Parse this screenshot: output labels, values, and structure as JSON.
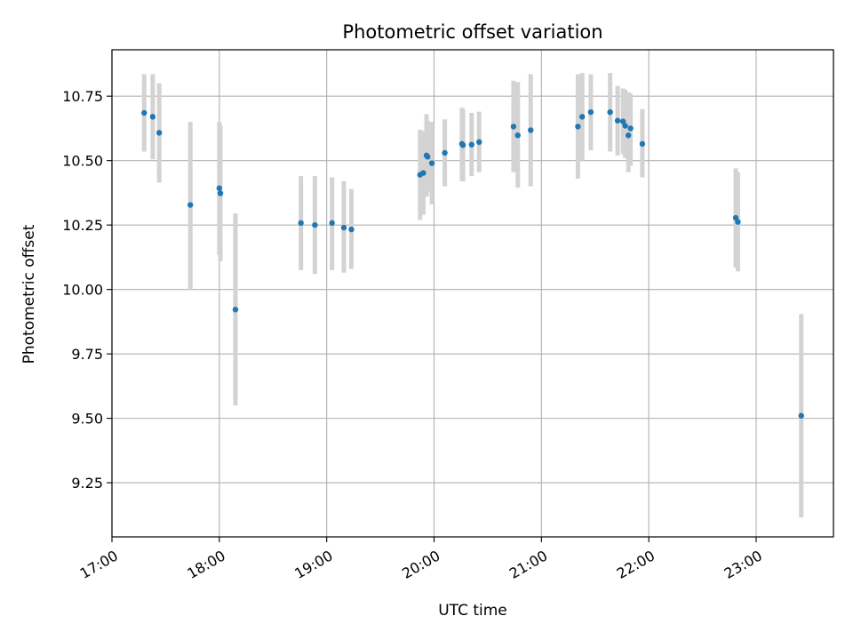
{
  "chart_data": {
    "type": "scatter",
    "title": "Photometric offset variation",
    "xlabel": "UTC time",
    "ylabel": "Photometric offset",
    "xlim_hours": [
      17.0,
      23.72
    ],
    "ylim": [
      9.04,
      10.93
    ],
    "grid": true,
    "x_ticks": [
      {
        "hour": 17,
        "label": "17:00"
      },
      {
        "hour": 18,
        "label": "18:00"
      },
      {
        "hour": 19,
        "label": "19:00"
      },
      {
        "hour": 20,
        "label": "20:00"
      },
      {
        "hour": 21,
        "label": "21:00"
      },
      {
        "hour": 22,
        "label": "22:00"
      },
      {
        "hour": 23,
        "label": "23:00"
      }
    ],
    "y_ticks": [
      {
        "value": 9.25,
        "label": "9.25"
      },
      {
        "value": 9.5,
        "label": "9.50"
      },
      {
        "value": 9.75,
        "label": "9.75"
      },
      {
        "value": 10.0,
        "label": "10.00"
      },
      {
        "value": 10.25,
        "label": "10.25"
      },
      {
        "value": 10.5,
        "label": "10.50"
      },
      {
        "value": 10.75,
        "label": "10.75"
      }
    ],
    "colors": {
      "point": "#1f77b4",
      "errorbar": "#d3d3d3",
      "grid": "#b0b0b0",
      "axes": "#000000"
    },
    "series": [
      {
        "name": "offset",
        "points": [
          {
            "t": 17.3,
            "y": 10.685,
            "lo": 10.535,
            "hi": 10.835
          },
          {
            "t": 17.38,
            "y": 10.67,
            "lo": 10.505,
            "hi": 10.835
          },
          {
            "t": 17.44,
            "y": 10.608,
            "lo": 10.415,
            "hi": 10.8
          },
          {
            "t": 17.73,
            "y": 10.328,
            "lo": 10.0,
            "hi": 10.65
          },
          {
            "t": 18.0,
            "y": 10.393,
            "lo": 10.135,
            "hi": 10.65
          },
          {
            "t": 18.01,
            "y": 10.373,
            "lo": 10.11,
            "hi": 10.635
          },
          {
            "t": 18.15,
            "y": 9.922,
            "lo": 9.55,
            "hi": 10.295
          },
          {
            "t": 18.76,
            "y": 10.258,
            "lo": 10.075,
            "hi": 10.44
          },
          {
            "t": 18.89,
            "y": 10.25,
            "lo": 10.06,
            "hi": 10.44
          },
          {
            "t": 19.05,
            "y": 10.258,
            "lo": 10.075,
            "hi": 10.435
          },
          {
            "t": 19.16,
            "y": 10.24,
            "lo": 10.065,
            "hi": 10.42
          },
          {
            "t": 19.23,
            "y": 10.233,
            "lo": 10.08,
            "hi": 10.39
          },
          {
            "t": 19.87,
            "y": 10.445,
            "lo": 10.27,
            "hi": 10.62
          },
          {
            "t": 19.9,
            "y": 10.452,
            "lo": 10.29,
            "hi": 10.615
          },
          {
            "t": 19.93,
            "y": 10.52,
            "lo": 10.36,
            "hi": 10.68
          },
          {
            "t": 19.94,
            "y": 10.515,
            "lo": 10.38,
            "hi": 10.655
          },
          {
            "t": 19.98,
            "y": 10.49,
            "lo": 10.33,
            "hi": 10.65
          },
          {
            "t": 20.1,
            "y": 10.53,
            "lo": 10.4,
            "hi": 10.66
          },
          {
            "t": 20.26,
            "y": 10.565,
            "lo": 10.42,
            "hi": 10.705
          },
          {
            "t": 20.27,
            "y": 10.56,
            "lo": 10.42,
            "hi": 10.7
          },
          {
            "t": 20.35,
            "y": 10.562,
            "lo": 10.44,
            "hi": 10.685
          },
          {
            "t": 20.42,
            "y": 10.572,
            "lo": 10.455,
            "hi": 10.69
          },
          {
            "t": 20.74,
            "y": 10.632,
            "lo": 10.455,
            "hi": 10.81
          },
          {
            "t": 20.78,
            "y": 10.598,
            "lo": 10.395,
            "hi": 10.805
          },
          {
            "t": 20.9,
            "y": 10.618,
            "lo": 10.4,
            "hi": 10.835
          },
          {
            "t": 21.34,
            "y": 10.632,
            "lo": 10.43,
            "hi": 10.835
          },
          {
            "t": 21.38,
            "y": 10.67,
            "lo": 10.5,
            "hi": 10.84
          },
          {
            "t": 21.46,
            "y": 10.688,
            "lo": 10.54,
            "hi": 10.835
          },
          {
            "t": 21.64,
            "y": 10.688,
            "lo": 10.535,
            "hi": 10.84
          },
          {
            "t": 21.71,
            "y": 10.655,
            "lo": 10.52,
            "hi": 10.79
          },
          {
            "t": 21.76,
            "y": 10.652,
            "lo": 10.525,
            "hi": 10.78
          },
          {
            "t": 21.78,
            "y": 10.635,
            "lo": 10.51,
            "hi": 10.775
          },
          {
            "t": 21.81,
            "y": 10.598,
            "lo": 10.455,
            "hi": 10.765
          },
          {
            "t": 21.83,
            "y": 10.625,
            "lo": 10.48,
            "hi": 10.76
          },
          {
            "t": 21.94,
            "y": 10.565,
            "lo": 10.435,
            "hi": 10.7
          },
          {
            "t": 22.81,
            "y": 10.278,
            "lo": 10.085,
            "hi": 10.47
          },
          {
            "t": 22.83,
            "y": 10.262,
            "lo": 10.07,
            "hi": 10.455
          },
          {
            "t": 23.42,
            "y": 9.51,
            "lo": 9.115,
            "hi": 9.905
          }
        ]
      }
    ]
  }
}
